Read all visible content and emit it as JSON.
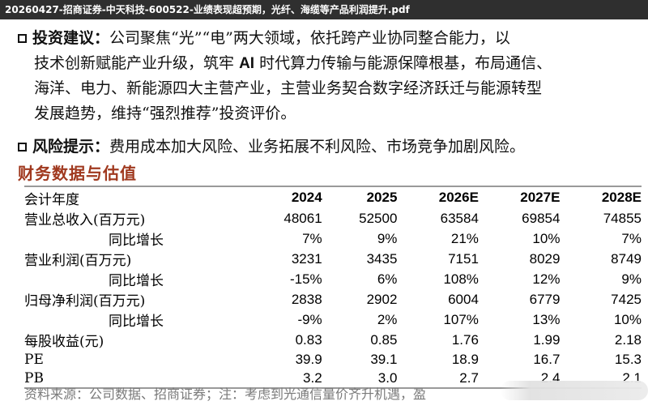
{
  "window": {
    "title": "20260427-招商证券-中天科技-600522-业绩表现超预期，光纤、海缆等产品利润提升.pdf"
  },
  "bullets": {
    "investment": {
      "label": "投资建议：",
      "line1": "公司聚焦“光”“电”两大领域，依托跨产业协同整合能力，以",
      "line2a": "技术创新赋能产业升级，筑牢",
      "line2ai": "AI",
      "line2b": "时代算力传输与能源保障根基，布局通信、",
      "line3": "海洋、电力、新能源四大主营产业，主营业务契合数字经济跃迁与能源转型",
      "line4": "发展趋势，维持“强烈推荐”投资评价。"
    },
    "risk": {
      "label": "风险提示：",
      "text": "费用成本加大风险、业务拓展不利风险、市场竞争加剧风险。"
    }
  },
  "section_title": "财务数据与估值",
  "table": {
    "header": {
      "label": "会计年度",
      "years": [
        "2024",
        "2025",
        "2026E",
        "2027E",
        "2028E"
      ]
    },
    "rows": [
      {
        "label": "营业总收入(百万元)",
        "sub": false,
        "values": [
          "48061",
          "52500",
          "63584",
          "69854",
          "74855"
        ]
      },
      {
        "label": "同比增长",
        "sub": true,
        "values": [
          "7%",
          "9%",
          "21%",
          "10%",
          "7%"
        ]
      },
      {
        "label": "营业利润(百万元)",
        "sub": false,
        "values": [
          "3231",
          "3435",
          "7151",
          "8029",
          "8749"
        ]
      },
      {
        "label": "同比增长",
        "sub": true,
        "values": [
          "-15%",
          "6%",
          "108%",
          "12%",
          "9%"
        ]
      },
      {
        "label": "归母净利润(百万元)",
        "sub": false,
        "values": [
          "2838",
          "2902",
          "6004",
          "6779",
          "7425"
        ]
      },
      {
        "label": "同比增长",
        "sub": true,
        "values": [
          "-9%",
          "2%",
          "107%",
          "13%",
          "10%"
        ]
      },
      {
        "label": "每股收益(元)",
        "sub": false,
        "values": [
          "0.83",
          "0.85",
          "1.76",
          "1.99",
          "2.18"
        ]
      },
      {
        "label": "PE",
        "sub": false,
        "values": [
          "39.9",
          "39.1",
          "18.9",
          "16.7",
          "15.3"
        ]
      },
      {
        "label": "PB",
        "sub": false,
        "values": [
          "3.2",
          "3.0",
          "2.7",
          "2.4",
          "2.1"
        ]
      }
    ]
  },
  "source": "资料来源：公司数据、招商证券；注：考虑到光通信量价齐升机遇，盈"
}
